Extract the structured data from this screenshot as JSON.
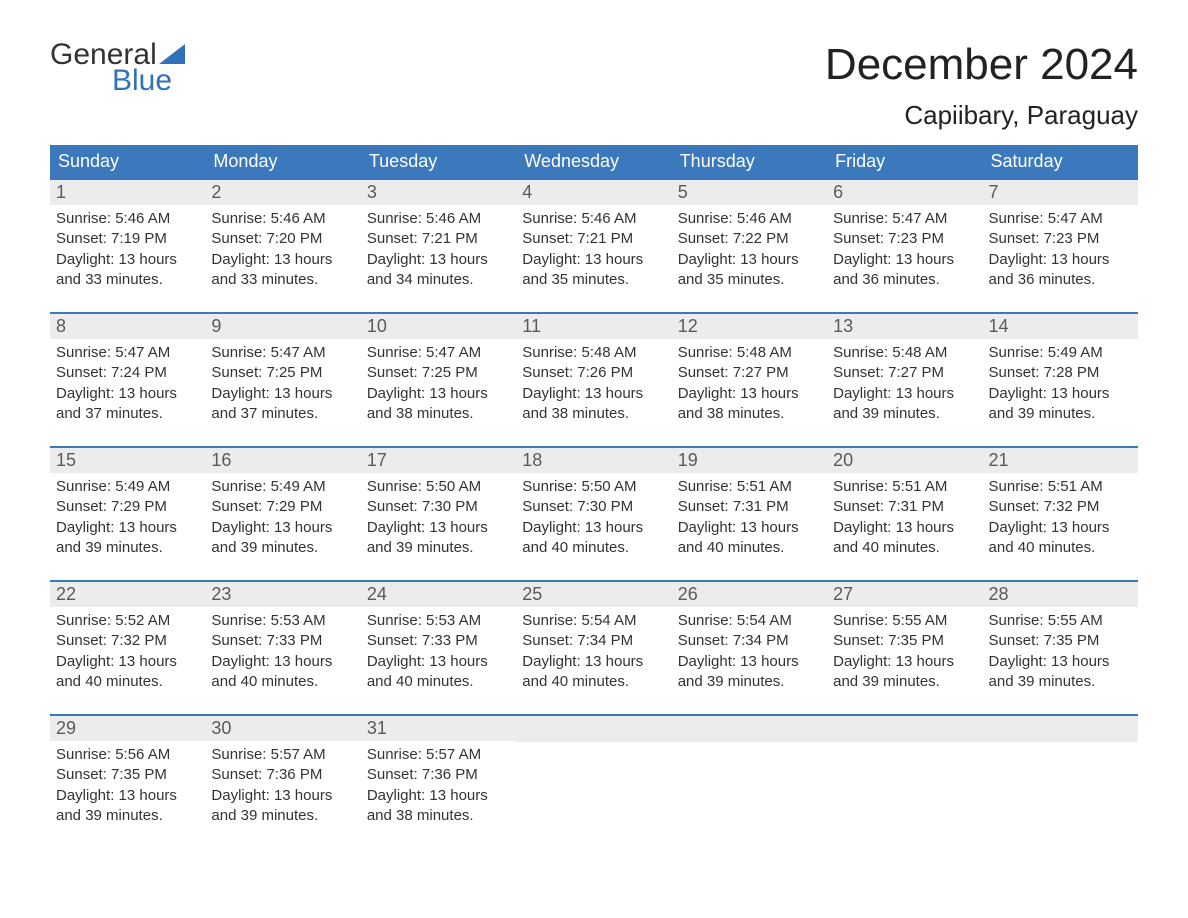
{
  "logo": {
    "line1": "General",
    "line2": "Blue",
    "triangle_color": "#2f72b8"
  },
  "title": "December 2024",
  "location": "Capiibary, Paraguay",
  "colors": {
    "header_bg": "#3b78bc",
    "header_text": "#ffffff",
    "daynum_bg": "#ececec",
    "daynum_text": "#5a5a5a",
    "body_text": "#333333",
    "week_border": "#3b78bc",
    "page_bg": "#ffffff"
  },
  "day_labels": [
    "Sunday",
    "Monday",
    "Tuesday",
    "Wednesday",
    "Thursday",
    "Friday",
    "Saturday"
  ],
  "weeks": [
    [
      {
        "n": "1",
        "sunrise": "5:46 AM",
        "sunset": "7:19 PM",
        "daylight": "13 hours and 33 minutes."
      },
      {
        "n": "2",
        "sunrise": "5:46 AM",
        "sunset": "7:20 PM",
        "daylight": "13 hours and 33 minutes."
      },
      {
        "n": "3",
        "sunrise": "5:46 AM",
        "sunset": "7:21 PM",
        "daylight": "13 hours and 34 minutes."
      },
      {
        "n": "4",
        "sunrise": "5:46 AM",
        "sunset": "7:21 PM",
        "daylight": "13 hours and 35 minutes."
      },
      {
        "n": "5",
        "sunrise": "5:46 AM",
        "sunset": "7:22 PM",
        "daylight": "13 hours and 35 minutes."
      },
      {
        "n": "6",
        "sunrise": "5:47 AM",
        "sunset": "7:23 PM",
        "daylight": "13 hours and 36 minutes."
      },
      {
        "n": "7",
        "sunrise": "5:47 AM",
        "sunset": "7:23 PM",
        "daylight": "13 hours and 36 minutes."
      }
    ],
    [
      {
        "n": "8",
        "sunrise": "5:47 AM",
        "sunset": "7:24 PM",
        "daylight": "13 hours and 37 minutes."
      },
      {
        "n": "9",
        "sunrise": "5:47 AM",
        "sunset": "7:25 PM",
        "daylight": "13 hours and 37 minutes."
      },
      {
        "n": "10",
        "sunrise": "5:47 AM",
        "sunset": "7:25 PM",
        "daylight": "13 hours and 38 minutes."
      },
      {
        "n": "11",
        "sunrise": "5:48 AM",
        "sunset": "7:26 PM",
        "daylight": "13 hours and 38 minutes."
      },
      {
        "n": "12",
        "sunrise": "5:48 AM",
        "sunset": "7:27 PM",
        "daylight": "13 hours and 38 minutes."
      },
      {
        "n": "13",
        "sunrise": "5:48 AM",
        "sunset": "7:27 PM",
        "daylight": "13 hours and 39 minutes."
      },
      {
        "n": "14",
        "sunrise": "5:49 AM",
        "sunset": "7:28 PM",
        "daylight": "13 hours and 39 minutes."
      }
    ],
    [
      {
        "n": "15",
        "sunrise": "5:49 AM",
        "sunset": "7:29 PM",
        "daylight": "13 hours and 39 minutes."
      },
      {
        "n": "16",
        "sunrise": "5:49 AM",
        "sunset": "7:29 PM",
        "daylight": "13 hours and 39 minutes."
      },
      {
        "n": "17",
        "sunrise": "5:50 AM",
        "sunset": "7:30 PM",
        "daylight": "13 hours and 39 minutes."
      },
      {
        "n": "18",
        "sunrise": "5:50 AM",
        "sunset": "7:30 PM",
        "daylight": "13 hours and 40 minutes."
      },
      {
        "n": "19",
        "sunrise": "5:51 AM",
        "sunset": "7:31 PM",
        "daylight": "13 hours and 40 minutes."
      },
      {
        "n": "20",
        "sunrise": "5:51 AM",
        "sunset": "7:31 PM",
        "daylight": "13 hours and 40 minutes."
      },
      {
        "n": "21",
        "sunrise": "5:51 AM",
        "sunset": "7:32 PM",
        "daylight": "13 hours and 40 minutes."
      }
    ],
    [
      {
        "n": "22",
        "sunrise": "5:52 AM",
        "sunset": "7:32 PM",
        "daylight": "13 hours and 40 minutes."
      },
      {
        "n": "23",
        "sunrise": "5:53 AM",
        "sunset": "7:33 PM",
        "daylight": "13 hours and 40 minutes."
      },
      {
        "n": "24",
        "sunrise": "5:53 AM",
        "sunset": "7:33 PM",
        "daylight": "13 hours and 40 minutes."
      },
      {
        "n": "25",
        "sunrise": "5:54 AM",
        "sunset": "7:34 PM",
        "daylight": "13 hours and 40 minutes."
      },
      {
        "n": "26",
        "sunrise": "5:54 AM",
        "sunset": "7:34 PM",
        "daylight": "13 hours and 39 minutes."
      },
      {
        "n": "27",
        "sunrise": "5:55 AM",
        "sunset": "7:35 PM",
        "daylight": "13 hours and 39 minutes."
      },
      {
        "n": "28",
        "sunrise": "5:55 AM",
        "sunset": "7:35 PM",
        "daylight": "13 hours and 39 minutes."
      }
    ],
    [
      {
        "n": "29",
        "sunrise": "5:56 AM",
        "sunset": "7:35 PM",
        "daylight": "13 hours and 39 minutes."
      },
      {
        "n": "30",
        "sunrise": "5:57 AM",
        "sunset": "7:36 PM",
        "daylight": "13 hours and 39 minutes."
      },
      {
        "n": "31",
        "sunrise": "5:57 AM",
        "sunset": "7:36 PM",
        "daylight": "13 hours and 38 minutes."
      },
      null,
      null,
      null,
      null
    ]
  ],
  "labels": {
    "sunrise_prefix": "Sunrise: ",
    "sunset_prefix": "Sunset: ",
    "daylight_prefix": "Daylight: "
  }
}
